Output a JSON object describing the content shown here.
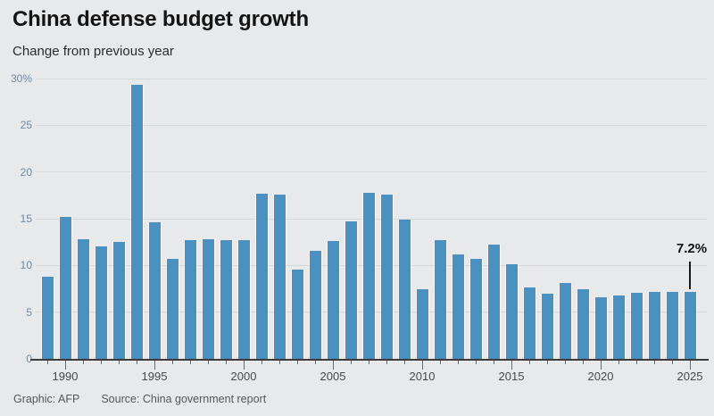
{
  "header": {
    "title": "China defense budget growth",
    "subtitle": "Change from previous year"
  },
  "footer": {
    "credit": "Graphic: AFP",
    "source": "Source: China government report"
  },
  "annotation": {
    "label": "7.2%",
    "year": 2025
  },
  "colors": {
    "background": "#e8e9ea",
    "bar": "#4a91c2",
    "grid": "#d6d7d8",
    "axis": "#3c3c3c",
    "y_label": "#6e89a4",
    "x_label": "#484848",
    "title": "#141414",
    "footer_text": "#585858",
    "annotation": "#111111"
  },
  "chart_data": {
    "type": "bar",
    "title": "China defense budget growth",
    "subtitle": "Change from previous year",
    "xlabel": "",
    "ylabel": "",
    "grid": true,
    "legend": "none",
    "ylim": [
      0,
      30
    ],
    "yticks": [
      {
        "value": 0,
        "label": "0"
      },
      {
        "value": 5,
        "label": "5"
      },
      {
        "value": 10,
        "label": "10"
      },
      {
        "value": 15,
        "label": "15"
      },
      {
        "value": 20,
        "label": "20"
      },
      {
        "value": 25,
        "label": "25"
      },
      {
        "value": 30,
        "label": "30%"
      }
    ],
    "xticks_labeled": [
      1990,
      1995,
      2000,
      2005,
      2010,
      2015,
      2020,
      2025
    ],
    "x": [
      1989,
      1990,
      1991,
      1992,
      1993,
      1994,
      1995,
      1996,
      1997,
      1998,
      1999,
      2000,
      2001,
      2002,
      2003,
      2004,
      2005,
      2006,
      2007,
      2008,
      2009,
      2010,
      2011,
      2012,
      2013,
      2014,
      2015,
      2016,
      2017,
      2018,
      2019,
      2020,
      2021,
      2022,
      2023,
      2024,
      2025
    ],
    "values": [
      8.8,
      15.2,
      12.8,
      12.0,
      12.5,
      29.3,
      14.6,
      10.7,
      12.7,
      12.8,
      12.7,
      12.7,
      17.7,
      17.6,
      9.6,
      11.6,
      12.6,
      14.7,
      17.8,
      17.6,
      14.9,
      7.5,
      12.7,
      11.2,
      10.7,
      12.2,
      10.1,
      7.6,
      7.0,
      8.1,
      7.5,
      6.6,
      6.8,
      7.1,
      7.2,
      7.2,
      7.2
    ],
    "annotation": {
      "text": "7.2%",
      "x": 2025
    }
  }
}
